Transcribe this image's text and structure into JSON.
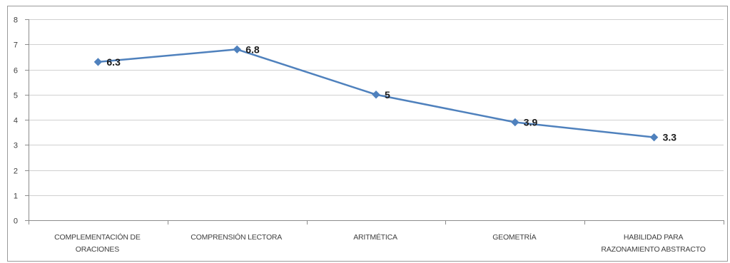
{
  "chart_data": {
    "type": "line",
    "categories": [
      [
        "COMPLEMENTACIÓN DE",
        "ORACIONES"
      ],
      [
        "COMPRENSIÓN LECTORA"
      ],
      [
        "ARITMÉTICA"
      ],
      [
        "GEOMETRÍA"
      ],
      [
        "HABILIDAD PARA",
        "RAZONAMIENTO ABSTRACTO"
      ]
    ],
    "series": [
      {
        "values": [
          6.3,
          6.8,
          5,
          3.9,
          3.3
        ],
        "data_labels": [
          "6.3",
          "6.8",
          "5",
          "3.9",
          "3.3"
        ],
        "color": "#4f81bd",
        "marker": "diamond"
      }
    ],
    "ylim": [
      0,
      8
    ],
    "yticks": [
      "0",
      "1",
      "2",
      "3",
      "4",
      "5",
      "6",
      "7",
      "8"
    ],
    "grid": true,
    "title": "",
    "xlabel": "",
    "ylabel": ""
  }
}
